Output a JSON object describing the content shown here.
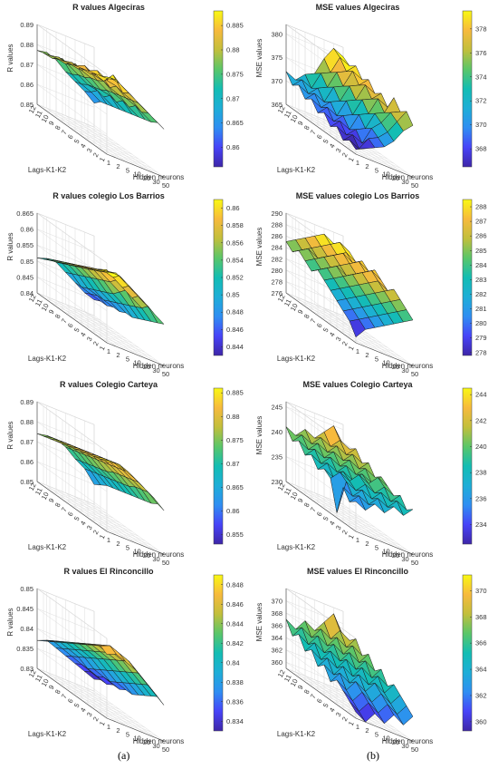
{
  "captions": {
    "a": "(a)",
    "b": "(b)"
  },
  "colormap": [
    "#3e26a8",
    "#4743f8",
    "#2f8ef2",
    "#1eaed7",
    "#13bdb3",
    "#5ac669",
    "#c2bf3c",
    "#f7ba3d",
    "#f9f814"
  ],
  "chart_data": [
    {
      "type": "surface3d",
      "title": "R values Algeciras",
      "xlabel": "Hidden neurons",
      "ylabel": "Lags-K1-K2",
      "zlabel": "R values",
      "x_ticks": [
        "1",
        "2",
        "5",
        "10",
        "20",
        "30",
        "50"
      ],
      "y_ticks": [
        "1",
        "2",
        "3",
        "4",
        "5",
        "6",
        "7",
        "8",
        "9",
        "10",
        "11",
        "12"
      ],
      "z_ticks": [
        "0.85",
        "0.86",
        "0.87",
        "0.88",
        "0.89"
      ],
      "zlim": [
        0.85,
        0.89
      ],
      "colorbar_ticks": [
        "0.86",
        "0.865",
        "0.87",
        "0.875",
        "0.88",
        "0.885"
      ],
      "clim": [
        0.856,
        0.888
      ],
      "values": [
        [
          0.888,
          0.889,
          0.886,
          0.883,
          0.88,
          0.877,
          0.874
        ],
        [
          0.887,
          0.888,
          0.887,
          0.884,
          0.881,
          0.878,
          0.875
        ],
        [
          0.886,
          0.884,
          0.889,
          0.882,
          0.88,
          0.876,
          0.873
        ],
        [
          0.885,
          0.887,
          0.884,
          0.883,
          0.879,
          0.877,
          0.872
        ],
        [
          0.884,
          0.883,
          0.885,
          0.88,
          0.878,
          0.874,
          0.871
        ],
        [
          0.883,
          0.885,
          0.882,
          0.881,
          0.877,
          0.875,
          0.87
        ],
        [
          0.882,
          0.881,
          0.883,
          0.879,
          0.876,
          0.872,
          0.869
        ],
        [
          0.881,
          0.882,
          0.88,
          0.878,
          0.874,
          0.873,
          0.868
        ],
        [
          0.88,
          0.879,
          0.881,
          0.876,
          0.873,
          0.87,
          0.867
        ],
        [
          0.879,
          0.88,
          0.878,
          0.875,
          0.872,
          0.871,
          0.866
        ],
        [
          0.878,
          0.877,
          0.879,
          0.873,
          0.87,
          0.868,
          0.865
        ],
        [
          0.877,
          0.878,
          0.876,
          0.872,
          0.869,
          0.866,
          0.862
        ]
      ]
    },
    {
      "type": "surface3d",
      "title": "MSE values Algeciras",
      "xlabel": "Hidden neurons",
      "ylabel": "Lags-K1-K2",
      "zlabel": "MSE values",
      "x_ticks": [
        "1",
        "2",
        "5",
        "10",
        "20",
        "30",
        "50"
      ],
      "y_ticks": [
        "1",
        "2",
        "3",
        "4",
        "5",
        "6",
        "7",
        "8",
        "9",
        "10",
        "11",
        "12"
      ],
      "z_ticks": [
        "365",
        "370",
        "375",
        "380"
      ],
      "zlim": [
        365,
        382
      ],
      "colorbar_ticks": [
        "368",
        "370",
        "372",
        "374",
        "376",
        "378"
      ],
      "clim": [
        366.5,
        379.5
      ],
      "values": [
        [
          366,
          367,
          368,
          369,
          371,
          374,
          376
        ],
        [
          367,
          366,
          369,
          370,
          372,
          375,
          378
        ],
        [
          366,
          368,
          367,
          371,
          373,
          376,
          377
        ],
        [
          368,
          367,
          369,
          370,
          374,
          375,
          379
        ],
        [
          367,
          369,
          368,
          372,
          373,
          377,
          376
        ],
        [
          369,
          368,
          370,
          371,
          375,
          376,
          378
        ],
        [
          368,
          370,
          369,
          373,
          374,
          378,
          377
        ],
        [
          370,
          369,
          371,
          372,
          376,
          377,
          379
        ],
        [
          369,
          371,
          370,
          374,
          375,
          379,
          378
        ],
        [
          371,
          370,
          372,
          373,
          377,
          378,
          380
        ],
        [
          370,
          372,
          371,
          375,
          376,
          380,
          379
        ],
        [
          372,
          371,
          373,
          374,
          378,
          381,
          380
        ]
      ]
    },
    {
      "type": "surface3d",
      "title": "R values colegio Los Barrios",
      "xlabel": "Hidden neurons",
      "ylabel": "Lags-K1-K2",
      "zlabel": "R values",
      "x_ticks": [
        "1",
        "2",
        "5",
        "10",
        "20",
        "30",
        "50"
      ],
      "y_ticks": [
        "1",
        "2",
        "3",
        "4",
        "5",
        "6",
        "7",
        "8",
        "9",
        "10",
        "11",
        "12"
      ],
      "z_ticks": [
        "0.84",
        "0.845",
        "0.85",
        "0.855",
        "0.86",
        "0.865"
      ],
      "zlim": [
        0.84,
        0.865
      ],
      "colorbar_ticks": [
        "0.844",
        "0.846",
        "0.848",
        "0.85",
        "0.852",
        "0.854",
        "0.856",
        "0.858",
        "0.86"
      ],
      "clim": [
        0.843,
        0.861
      ],
      "values": [
        [
          0.862,
          0.863,
          0.861,
          0.859,
          0.857,
          0.855,
          0.853
        ],
        [
          0.861,
          0.862,
          0.862,
          0.86,
          0.858,
          0.856,
          0.852
        ],
        [
          0.86,
          0.861,
          0.86,
          0.858,
          0.856,
          0.854,
          0.851
        ],
        [
          0.859,
          0.86,
          0.861,
          0.859,
          0.857,
          0.853,
          0.85
        ],
        [
          0.858,
          0.859,
          0.859,
          0.857,
          0.855,
          0.852,
          0.849
        ],
        [
          0.857,
          0.858,
          0.858,
          0.856,
          0.853,
          0.851,
          0.848
        ],
        [
          0.856,
          0.857,
          0.857,
          0.855,
          0.852,
          0.85,
          0.848
        ],
        [
          0.855,
          0.856,
          0.856,
          0.854,
          0.851,
          0.849,
          0.847
        ],
        [
          0.854,
          0.855,
          0.855,
          0.853,
          0.85,
          0.848,
          0.847
        ],
        [
          0.853,
          0.854,
          0.854,
          0.852,
          0.849,
          0.848,
          0.846
        ],
        [
          0.852,
          0.853,
          0.853,
          0.851,
          0.848,
          0.847,
          0.846
        ],
        [
          0.851,
          0.852,
          0.852,
          0.85,
          0.848,
          0.846,
          0.845
        ]
      ]
    },
    {
      "type": "surface3d",
      "title": "MSE values colegio Los Barrios",
      "xlabel": "Hidden neurons",
      "ylabel": "Lags-K1-K2",
      "zlabel": "MSE values",
      "x_ticks": [
        "1",
        "2",
        "5",
        "10",
        "20",
        "30",
        "50"
      ],
      "y_ticks": [
        "1",
        "2",
        "3",
        "4",
        "5",
        "6",
        "7",
        "8",
        "9",
        "10",
        "11",
        "12"
      ],
      "z_ticks": [
        "276",
        "278",
        "280",
        "282",
        "284",
        "286",
        "288",
        "290"
      ],
      "zlim": [
        276,
        290
      ],
      "colorbar_ticks": [
        "278",
        "279",
        "280",
        "281",
        "282",
        "283",
        "284",
        "285",
        "286",
        "287",
        "288"
      ],
      "clim": [
        277.8,
        288.5
      ],
      "values": [
        [
          277,
          279,
          280,
          281,
          282,
          283,
          284
        ],
        [
          279,
          280,
          281,
          282,
          283,
          284,
          285
        ],
        [
          280,
          281,
          282,
          283,
          284,
          285,
          286
        ],
        [
          281,
          282,
          283,
          284,
          285,
          286,
          287
        ],
        [
          282,
          283,
          284,
          285,
          286,
          287,
          286
        ],
        [
          283,
          284,
          285,
          286,
          287,
          288,
          287
        ],
        [
          284,
          285,
          286,
          285,
          286,
          287,
          288
        ],
        [
          283,
          284,
          285,
          286,
          287,
          288,
          287
        ],
        [
          284,
          285,
          286,
          287,
          288,
          287,
          288
        ],
        [
          285,
          286,
          285,
          286,
          287,
          288,
          287
        ],
        [
          284,
          285,
          286,
          287,
          288,
          289,
          288
        ],
        [
          285,
          286,
          287,
          288,
          289,
          288,
          287
        ]
      ]
    },
    {
      "type": "surface3d",
      "title": "R values Colegio Carteya",
      "xlabel": "Hidden neurons",
      "ylabel": "Lags-K1-K2",
      "zlabel": "R values",
      "x_ticks": [
        "1",
        "2",
        "5",
        "10",
        "20",
        "30",
        "50"
      ],
      "y_ticks": [
        "1",
        "2",
        "3",
        "4",
        "5",
        "6",
        "7",
        "8",
        "9",
        "10",
        "11",
        "12"
      ],
      "z_ticks": [
        "0.85",
        "0.86",
        "0.87",
        "0.88",
        "0.89"
      ],
      "zlim": [
        0.85,
        0.89
      ],
      "colorbar_ticks": [
        "0.855",
        "0.86",
        "0.865",
        "0.87",
        "0.875",
        "0.88",
        "0.885"
      ],
      "clim": [
        0.853,
        0.886
      ],
      "values": [
        [
          0.885,
          0.886,
          0.884,
          0.882,
          0.879,
          0.876,
          0.872
        ],
        [
          0.884,
          0.885,
          0.885,
          0.883,
          0.88,
          0.877,
          0.873
        ],
        [
          0.883,
          0.884,
          0.884,
          0.882,
          0.879,
          0.876,
          0.871
        ],
        [
          0.882,
          0.883,
          0.883,
          0.881,
          0.878,
          0.875,
          0.87
        ],
        [
          0.881,
          0.882,
          0.882,
          0.88,
          0.877,
          0.873,
          0.869
        ],
        [
          0.88,
          0.881,
          0.881,
          0.879,
          0.876,
          0.872,
          0.868
        ],
        [
          0.879,
          0.88,
          0.88,
          0.878,
          0.874,
          0.871,
          0.867
        ],
        [
          0.878,
          0.879,
          0.879,
          0.877,
          0.873,
          0.87,
          0.866
        ],
        [
          0.877,
          0.878,
          0.878,
          0.876,
          0.872,
          0.869,
          0.865
        ],
        [
          0.876,
          0.877,
          0.877,
          0.875,
          0.871,
          0.868,
          0.864
        ],
        [
          0.875,
          0.876,
          0.876,
          0.874,
          0.87,
          0.867,
          0.862
        ],
        [
          0.874,
          0.875,
          0.875,
          0.873,
          0.869,
          0.866,
          0.86
        ]
      ]
    },
    {
      "type": "surface3d",
      "title": "MSE values Colegio Carteya",
      "xlabel": "Hidden neurons",
      "ylabel": "Lags-K1-K2",
      "zlabel": "MSE values",
      "x_ticks": [
        "1",
        "2",
        "5",
        "10",
        "20",
        "30",
        "50"
      ],
      "y_ticks": [
        "1",
        "2",
        "3",
        "4",
        "5",
        "6",
        "7",
        "8",
        "9",
        "10",
        "11",
        "12"
      ],
      "z_ticks": [
        "230",
        "235",
        "240",
        "245"
      ],
      "zlim": [
        230,
        246
      ],
      "colorbar_ticks": [
        "234",
        "236",
        "238",
        "240",
        "242",
        "244"
      ],
      "clim": [
        232.5,
        244.5
      ],
      "values": [
        [
          236,
          235,
          237,
          236,
          238,
          237,
          239
        ],
        [
          235,
          237,
          236,
          238,
          237,
          239,
          238
        ],
        [
          237,
          236,
          238,
          237,
          239,
          238,
          240
        ],
        [
          231,
          238,
          237,
          239,
          238,
          240,
          239
        ],
        [
          237,
          239,
          238,
          240,
          239,
          241,
          240
        ],
        [
          238,
          237,
          239,
          238,
          240,
          239,
          241
        ],
        [
          237,
          239,
          238,
          240,
          239,
          241,
          240
        ],
        [
          239,
          238,
          240,
          239,
          241,
          240,
          242
        ],
        [
          238,
          240,
          239,
          241,
          240,
          242,
          241
        ],
        [
          240,
          239,
          241,
          240,
          242,
          241,
          243
        ],
        [
          239,
          241,
          240,
          242,
          241,
          243,
          242
        ],
        [
          241,
          240,
          242,
          241,
          243,
          245,
          242
        ]
      ]
    },
    {
      "type": "surface3d",
      "title": "R values El Rinconcillo",
      "xlabel": "Hidden neurons",
      "ylabel": "Lags-K1-K2",
      "zlabel": "R values",
      "x_ticks": [
        "1",
        "2",
        "5",
        "10",
        "20",
        "30",
        "50"
      ],
      "y_ticks": [
        "1",
        "2",
        "3",
        "4",
        "5",
        "6",
        "7",
        "8",
        "9",
        "10",
        "11",
        "12"
      ],
      "z_ticks": [
        "0.83",
        "0.835",
        "0.84",
        "0.845",
        "0.85"
      ],
      "zlim": [
        0.83,
        0.85
      ],
      "colorbar_ticks": [
        "0.834",
        "0.836",
        "0.838",
        "0.84",
        "0.842",
        "0.844",
        "0.846",
        "0.848"
      ],
      "clim": [
        0.833,
        0.849
      ],
      "values": [
        [
          0.846,
          0.847,
          0.846,
          0.845,
          0.843,
          0.841,
          0.839
        ],
        [
          0.847,
          0.848,
          0.847,
          0.846,
          0.844,
          0.842,
          0.84
        ],
        [
          0.846,
          0.847,
          0.846,
          0.845,
          0.843,
          0.841,
          0.839
        ],
        [
          0.845,
          0.846,
          0.845,
          0.844,
          0.842,
          0.84,
          0.838
        ],
        [
          0.844,
          0.845,
          0.844,
          0.843,
          0.841,
          0.839,
          0.837
        ],
        [
          0.843,
          0.844,
          0.843,
          0.842,
          0.84,
          0.838,
          0.836
        ],
        [
          0.842,
          0.843,
          0.842,
          0.841,
          0.839,
          0.837,
          0.836
        ],
        [
          0.841,
          0.842,
          0.841,
          0.84,
          0.838,
          0.836,
          0.835
        ],
        [
          0.84,
          0.841,
          0.84,
          0.839,
          0.837,
          0.836,
          0.835
        ],
        [
          0.839,
          0.84,
          0.839,
          0.838,
          0.836,
          0.835,
          0.834
        ],
        [
          0.838,
          0.839,
          0.838,
          0.837,
          0.836,
          0.835,
          0.834
        ],
        [
          0.837,
          0.838,
          0.837,
          0.836,
          0.835,
          0.834,
          0.833
        ]
      ]
    },
    {
      "type": "surface3d",
      "title": "MSE values El Rinconcillo",
      "xlabel": "Hidden neurons",
      "ylabel": "Lags-K1-K2",
      "zlabel": "MSE values",
      "x_ticks": [
        "1",
        "2",
        "5",
        "10",
        "20",
        "30",
        "50"
      ],
      "y_ticks": [
        "1",
        "2",
        "3",
        "4",
        "5",
        "6",
        "7",
        "8",
        "9",
        "10",
        "11",
        "12"
      ],
      "z_ticks": [
        "360",
        "362",
        "364",
        "366",
        "368",
        "370"
      ],
      "zlim": [
        359,
        372
      ],
      "colorbar_ticks": [
        "360",
        "362",
        "364",
        "366",
        "368",
        "370"
      ],
      "clim": [
        359.3,
        371.2
      ],
      "values": [
        [
          360,
          359,
          361,
          360,
          362,
          361,
          363
        ],
        [
          361,
          360,
          362,
          361,
          363,
          362,
          364
        ],
        [
          362,
          361,
          363,
          362,
          364,
          363,
          365
        ],
        [
          363,
          362,
          364,
          363,
          365,
          364,
          366
        ],
        [
          362,
          364,
          363,
          365,
          364,
          366,
          365
        ],
        [
          364,
          363,
          365,
          364,
          366,
          365,
          367
        ],
        [
          363,
          365,
          364,
          366,
          365,
          367,
          366
        ],
        [
          365,
          364,
          366,
          365,
          367,
          366,
          368
        ],
        [
          364,
          366,
          365,
          367,
          366,
          368,
          367
        ],
        [
          366,
          365,
          367,
          366,
          368,
          367,
          369
        ],
        [
          365,
          367,
          366,
          368,
          367,
          369,
          368
        ],
        [
          367,
          366,
          368,
          367,
          369,
          371,
          368
        ]
      ]
    }
  ]
}
